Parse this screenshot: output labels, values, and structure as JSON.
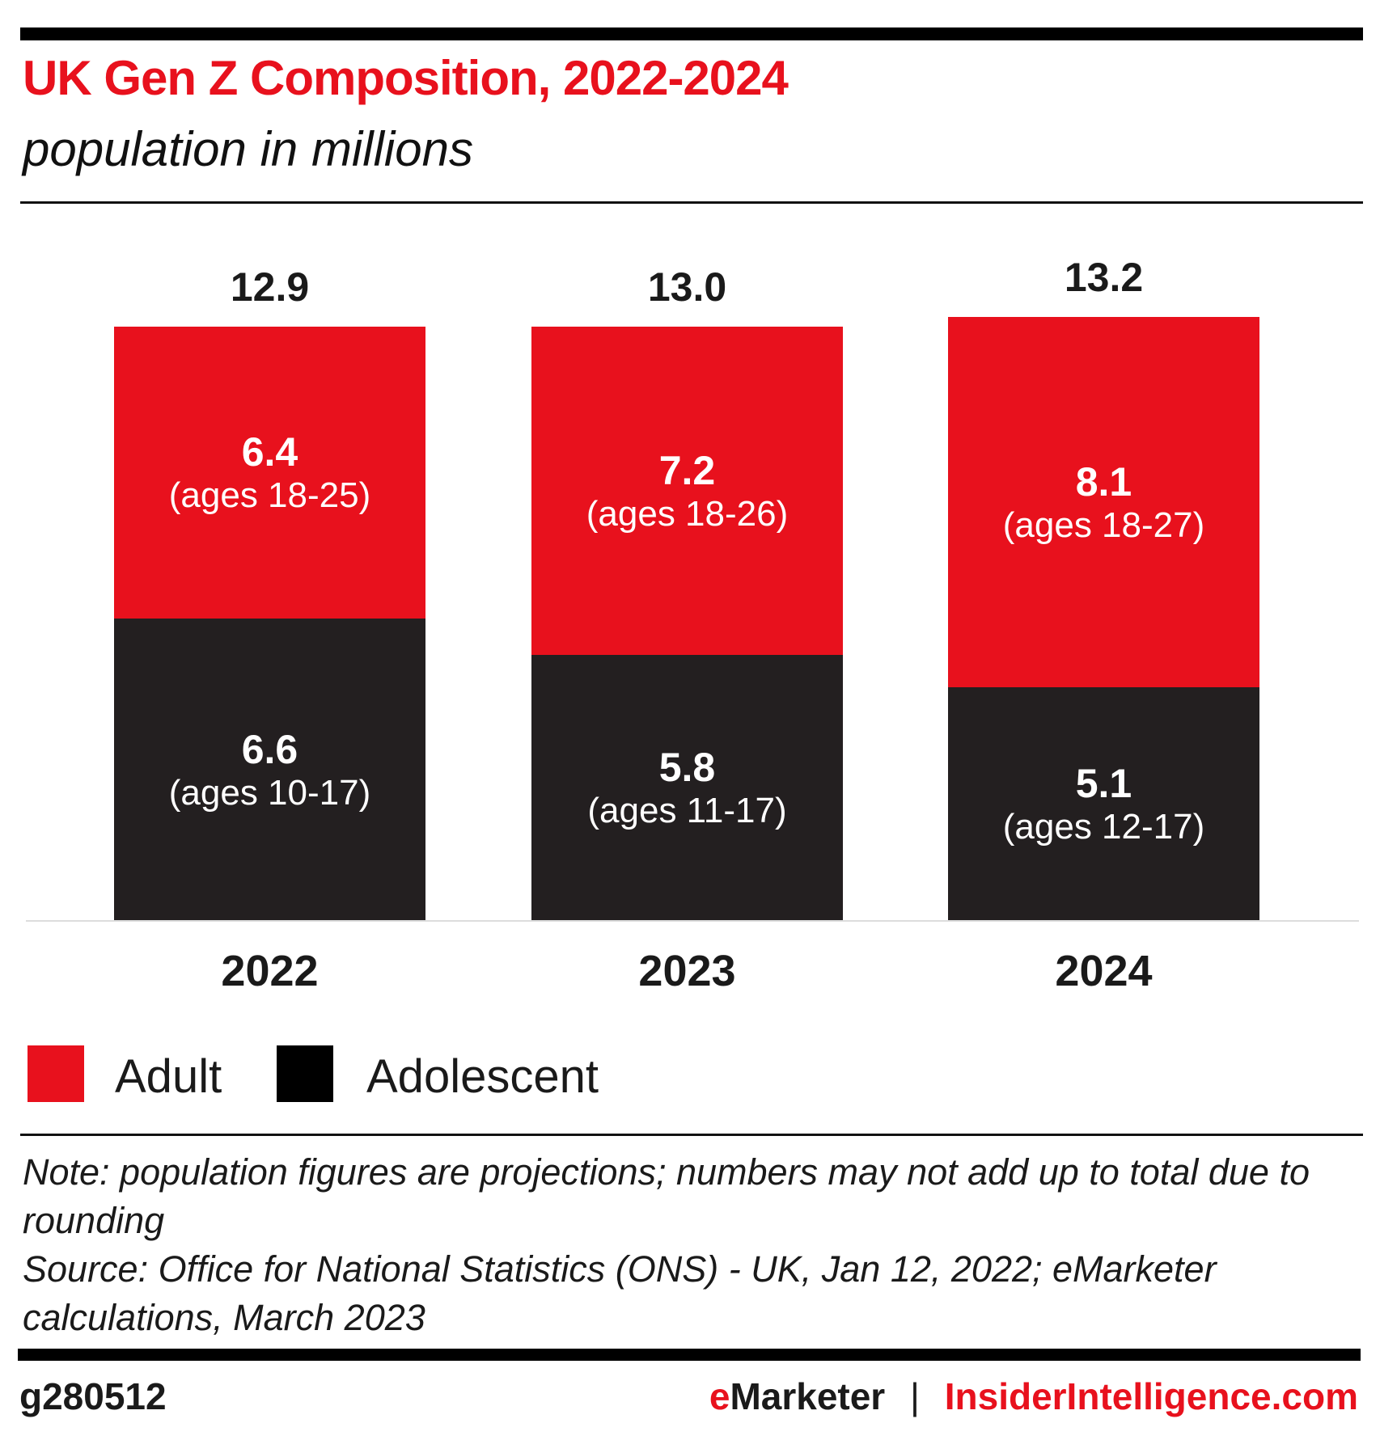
{
  "header": {
    "title": "UK Gen Z Composition, 2022-2024",
    "subtitle": "population in millions"
  },
  "chart_data": {
    "type": "bar",
    "stacked": true,
    "title": "UK Gen Z Composition, 2022-2024",
    "subtitle": "population in millions",
    "categories": [
      "2022",
      "2023",
      "2024"
    ],
    "totals": [
      "12.9",
      "13.0",
      "13.2"
    ],
    "series": [
      {
        "name": "Adolescent",
        "color": "#231f20",
        "values": [
          6.6,
          5.8,
          5.1
        ],
        "labels": [
          "6.6",
          "5.8",
          "5.1"
        ],
        "ages": [
          "(ages 10-17)",
          "(ages 11-17)",
          "(ages 12-17)"
        ]
      },
      {
        "name": "Adult",
        "color": "#e8111d",
        "values": [
          6.4,
          7.2,
          8.1
        ],
        "labels": [
          "6.4",
          "7.2",
          "8.1"
        ],
        "ages": [
          "(ages 18-25)",
          "(ages 18-26)",
          "(ages 18-27)"
        ]
      }
    ],
    "legend": [
      "Adult",
      "Adolescent"
    ],
    "legend_placement": "bottom-left",
    "ylim": [
      0,
      13.2
    ]
  },
  "note": {
    "line1": "Note: population figures are projections; numbers may not add up to total due to rounding",
    "line2": "Source: Office for National Statistics (ONS) - UK, Jan 12, 2022; eMarketer calculations, March 2023"
  },
  "footer": {
    "id": "g280512",
    "brand_e": "e",
    "brand_rest": "Marketer",
    "separator": "|",
    "site": "InsiderIntelligence.com"
  }
}
